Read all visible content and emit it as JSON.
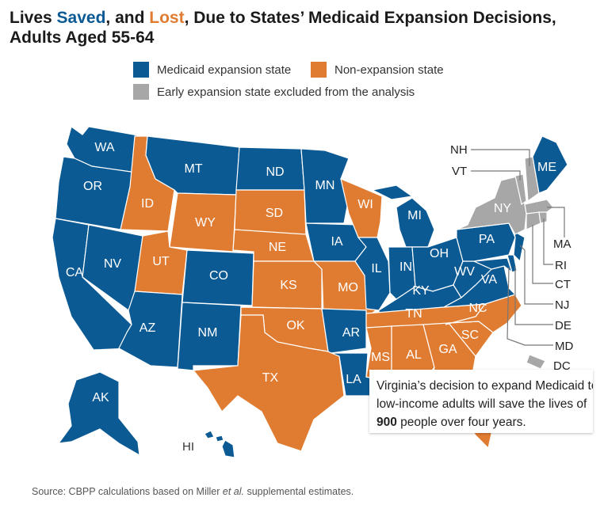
{
  "title": {
    "part1": "Lives ",
    "saved": "Saved",
    "part2": ", and ",
    "lost": "Lost",
    "part3": ", Due to States’ Medicaid Expansion Decisions, Adults Aged 55-64"
  },
  "legend": [
    {
      "label": "Medicaid expansion state",
      "color": "#0b5a94"
    },
    {
      "label": "Non-expansion state",
      "color": "#e07c31"
    },
    {
      "label": "Early expansion state excluded from the analysis",
      "color": "#a7a7a7"
    }
  ],
  "states": {
    "WA": "WA",
    "OR": "OR",
    "CA": "CA",
    "NV": "NV",
    "ID": "ID",
    "MT": "MT",
    "WY": "WY",
    "UT": "UT",
    "AZ": "AZ",
    "CO": "CO",
    "NM": "NM",
    "ND": "ND",
    "SD": "SD",
    "NE": "NE",
    "KS": "KS",
    "OK": "OK",
    "TX": "TX",
    "MN": "MN",
    "IA": "IA",
    "MO": "MO",
    "AR": "AR",
    "LA": "LA",
    "WI": "WI",
    "IL": "IL",
    "MI": "MI",
    "IN": "IN",
    "OH": "OH",
    "KY": "KY",
    "TN": "TN",
    "MS": "MS",
    "AL": "AL",
    "GA": "GA",
    "SC": "SC",
    "NC": "NC",
    "VA": "VA",
    "WV": "WV",
    "PA": "PA",
    "NY": "NY",
    "ME": "ME",
    "AK": "AK",
    "HI": "HI"
  },
  "callouts": {
    "NH": "NH",
    "VT": "VT",
    "MA": "MA",
    "RI": "RI",
    "CT": "CT",
    "NJ": "NJ",
    "DE": "DE",
    "MD": "MD",
    "DC": "DC"
  },
  "note": {
    "line1": "Virginia’s decision to expand Medicaid to",
    "line2": "low-income adults will save the lives of",
    "number": "900",
    "line3_rest": " people over four years."
  },
  "source": {
    "prefix": "Source: CBPP calculations based on Miller ",
    "etal": "et al.",
    "suffix": " supplemental estimates."
  }
}
